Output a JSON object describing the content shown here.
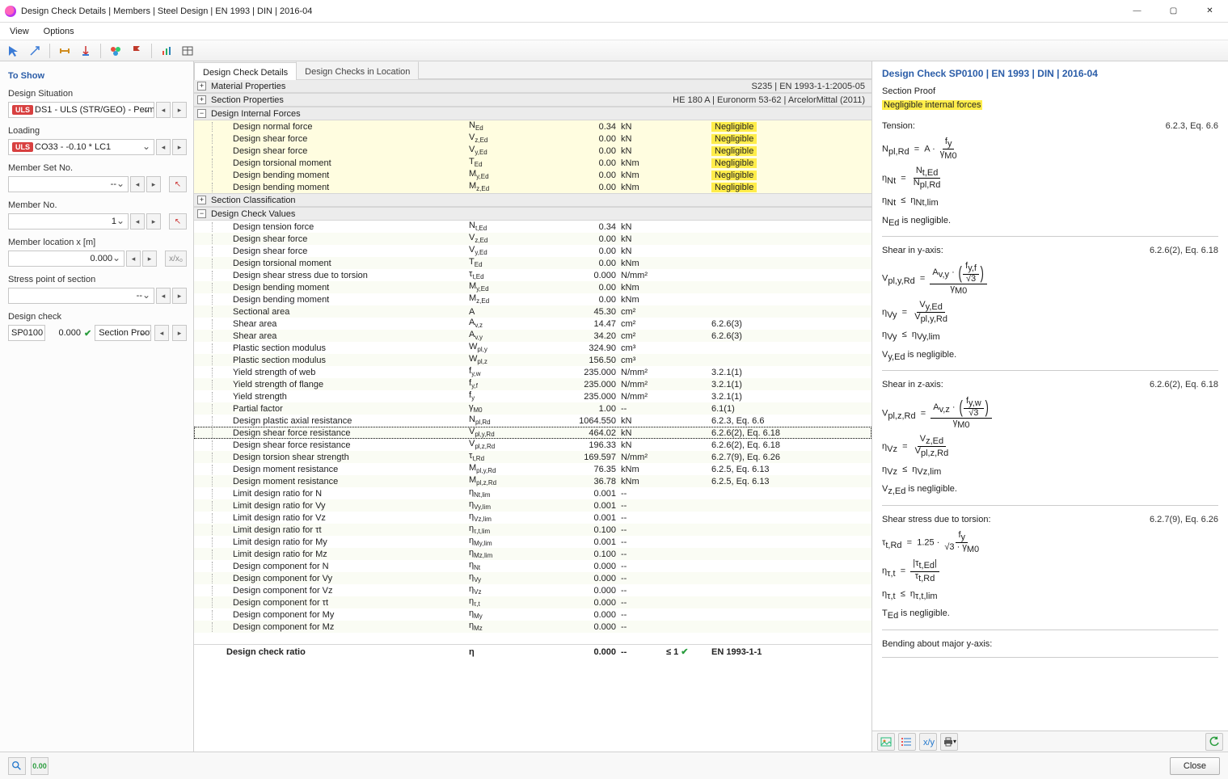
{
  "window": {
    "title": "Design Check Details | Members | Steel Design | EN 1993 | DIN | 2016-04"
  },
  "menu": {
    "items": [
      "View",
      "Options"
    ]
  },
  "left": {
    "heading_to_show": "To Show",
    "labels": {
      "design_situation": "Design Situation",
      "loading": "Loading",
      "member_set_no": "Member Set No.",
      "member_no": "Member No.",
      "member_location": "Member location x [m]",
      "stress_point": "Stress point of section",
      "design_check": "Design check"
    },
    "design_situation_tag": "ULS",
    "design_situation_value": "DS1 - ULS (STR/GEO) - Perm...",
    "loading_tag": "ULS",
    "loading_value": "CO33 - -0.10 * LC1",
    "member_set_value": "--",
    "member_no_value": "1",
    "member_location_value": "0.000",
    "member_location_reset": "x/x₀",
    "stress_point_value": "--",
    "design_check_code": "SP0100",
    "design_check_ratio": "0.000",
    "design_check_desc": "Section Proof |..."
  },
  "tabs": {
    "active": "Design Check Details",
    "inactive": "Design Checks in Location"
  },
  "center": {
    "groups": [
      {
        "title": "Material Properties",
        "right": "S235 | EN 1993-1-1:2005-05",
        "exp": "+",
        "rows": []
      },
      {
        "title": "Section Properties",
        "right": "HE 180 A | Euronorm 53-62 | ArcelorMittal (2011)",
        "exp": "+",
        "rows": []
      },
      {
        "title": "Design Internal Forces",
        "right": "",
        "exp": "−",
        "hiA": true,
        "rows": [
          {
            "label": "Design normal force",
            "sym": "N",
            "sub": "Ed",
            "val": "0.34",
            "unit": "kN",
            "note": "Negligible"
          },
          {
            "label": "Design shear force",
            "sym": "V",
            "sub": "z,Ed",
            "val": "0.00",
            "unit": "kN",
            "note": "Negligible"
          },
          {
            "label": "Design shear force",
            "sym": "V",
            "sub": "y,Ed",
            "val": "0.00",
            "unit": "kN",
            "note": "Negligible"
          },
          {
            "label": "Design torsional moment",
            "sym": "T",
            "sub": "Ed",
            "val": "0.00",
            "unit": "kNm",
            "note": "Negligible"
          },
          {
            "label": "Design bending moment",
            "sym": "M",
            "sub": "y,Ed",
            "val": "0.00",
            "unit": "kNm",
            "note": "Negligible"
          },
          {
            "label": "Design bending moment",
            "sym": "M",
            "sub": "z,Ed",
            "val": "0.00",
            "unit": "kNm",
            "note": "Negligible"
          }
        ]
      },
      {
        "title": "Section Classification",
        "right": "",
        "exp": "+",
        "rows": []
      },
      {
        "title": "Design Check Values",
        "right": "",
        "exp": "−",
        "rows": [
          {
            "label": "Design tension force",
            "sym": "N",
            "sub": "t,Ed",
            "val": "0.34",
            "unit": "kN",
            "note": ""
          },
          {
            "label": "Design shear force",
            "sym": "V",
            "sub": "z,Ed",
            "val": "0.00",
            "unit": "kN",
            "note": ""
          },
          {
            "label": "Design shear force",
            "sym": "V",
            "sub": "y,Ed",
            "val": "0.00",
            "unit": "kN",
            "note": ""
          },
          {
            "label": "Design torsional moment",
            "sym": "T",
            "sub": "Ed",
            "val": "0.00",
            "unit": "kNm",
            "note": ""
          },
          {
            "label": "Design shear stress due to torsion",
            "sym": "τ",
            "sub": "t,Ed",
            "val": "0.000",
            "unit": "N/mm²",
            "note": ""
          },
          {
            "label": "Design bending moment",
            "sym": "M",
            "sub": "y,Ed",
            "val": "0.00",
            "unit": "kNm",
            "note": ""
          },
          {
            "label": "Design bending moment",
            "sym": "M",
            "sub": "z,Ed",
            "val": "0.00",
            "unit": "kNm",
            "note": ""
          },
          {
            "label": "Sectional area",
            "sym": "A",
            "sub": "",
            "val": "45.30",
            "unit": "cm²",
            "note": ""
          },
          {
            "label": "Shear area",
            "sym": "A",
            "sub": "v,z",
            "val": "14.47",
            "unit": "cm²",
            "note": "6.2.6(3)"
          },
          {
            "label": "Shear area",
            "sym": "A",
            "sub": "v,y",
            "val": "34.20",
            "unit": "cm²",
            "note": "6.2.6(3)"
          },
          {
            "label": "Plastic section modulus",
            "sym": "W",
            "sub": "pl,y",
            "val": "324.90",
            "unit": "cm³",
            "note": ""
          },
          {
            "label": "Plastic section modulus",
            "sym": "W",
            "sub": "pl,z",
            "val": "156.50",
            "unit": "cm³",
            "note": ""
          },
          {
            "label": "Yield strength of web",
            "sym": "f",
            "sub": "y,w",
            "val": "235.000",
            "unit": "N/mm²",
            "note": "3.2.1(1)"
          },
          {
            "label": "Yield strength of flange",
            "sym": "f",
            "sub": "y,f",
            "val": "235.000",
            "unit": "N/mm²",
            "note": "3.2.1(1)"
          },
          {
            "label": "Yield strength",
            "sym": "f",
            "sub": "y",
            "val": "235.000",
            "unit": "N/mm²",
            "note": "3.2.1(1)"
          },
          {
            "label": "Partial factor",
            "sym": "γ",
            "sub": "M0",
            "val": "1.00",
            "unit": "--",
            "note": "6.1(1)"
          },
          {
            "label": "Design plastic axial resistance",
            "sym": "N",
            "sub": "pl,Rd",
            "val": "1064.550",
            "unit": "kN",
            "note": "6.2.3, Eq. 6.6"
          },
          {
            "label": "Design shear force resistance",
            "sym": "V",
            "sub": "pl,y,Rd",
            "val": "464.02",
            "unit": "kN",
            "note": "6.2.6(2), Eq. 6.18",
            "selected": true
          },
          {
            "label": "Design shear force resistance",
            "sym": "V",
            "sub": "pl,z,Rd",
            "val": "196.33",
            "unit": "kN",
            "note": "6.2.6(2), Eq. 6.18"
          },
          {
            "label": "Design torsion shear strength",
            "sym": "τ",
            "sub": "t,Rd",
            "val": "169.597",
            "unit": "N/mm²",
            "note": "6.2.7(9), Eq. 6.26"
          },
          {
            "label": "Design moment resistance",
            "sym": "M",
            "sub": "pl,y,Rd",
            "val": "76.35",
            "unit": "kNm",
            "note": "6.2.5, Eq. 6.13"
          },
          {
            "label": "Design moment resistance",
            "sym": "M",
            "sub": "pl,z,Rd",
            "val": "36.78",
            "unit": "kNm",
            "note": "6.2.5, Eq. 6.13"
          },
          {
            "label": "Limit design ratio for N",
            "sym": "η",
            "sub": "Nt,lim",
            "val": "0.001",
            "unit": "--",
            "note": ""
          },
          {
            "label": "Limit design ratio for Vy",
            "sym": "η",
            "sub": "Vy,lim",
            "val": "0.001",
            "unit": "--",
            "note": ""
          },
          {
            "label": "Limit design ratio for Vz",
            "sym": "η",
            "sub": "Vz,lim",
            "val": "0.001",
            "unit": "--",
            "note": ""
          },
          {
            "label": "Limit design ratio for τt",
            "sym": "η",
            "sub": "τ,t,lim",
            "val": "0.100",
            "unit": "--",
            "note": ""
          },
          {
            "label": "Limit design ratio for My",
            "sym": "η",
            "sub": "My,lim",
            "val": "0.001",
            "unit": "--",
            "note": ""
          },
          {
            "label": "Limit design ratio for Mz",
            "sym": "η",
            "sub": "Mz,lim",
            "val": "0.100",
            "unit": "--",
            "note": ""
          },
          {
            "label": "Design component for N",
            "sym": "η",
            "sub": "Nt",
            "val": "0.000",
            "unit": "--",
            "note": ""
          },
          {
            "label": "Design component for Vy",
            "sym": "η",
            "sub": "Vy",
            "val": "0.000",
            "unit": "--",
            "note": ""
          },
          {
            "label": "Design component for Vz",
            "sym": "η",
            "sub": "Vz",
            "val": "0.000",
            "unit": "--",
            "note": ""
          },
          {
            "label": "Design component for τt",
            "sym": "η",
            "sub": "τ,t",
            "val": "0.000",
            "unit": "--",
            "note": ""
          },
          {
            "label": "Design component for My",
            "sym": "η",
            "sub": "My",
            "val": "0.000",
            "unit": "--",
            "note": ""
          },
          {
            "label": "Design component for Mz",
            "sym": "η",
            "sub": "Mz",
            "val": "0.000",
            "unit": "--",
            "note": ""
          }
        ]
      }
    ],
    "summary": {
      "label": "Design check ratio",
      "sym": "η",
      "val": "0.000",
      "unit": "--",
      "limit": "≤ 1",
      "std": "EN 1993-1-1"
    }
  },
  "right": {
    "title": "Design Check SP0100 | EN 1993 | DIN | 2016-04",
    "section_proof": "Section Proof",
    "subtitle_hl": "Negligible internal forces",
    "blocks": [
      {
        "head": "Tension:",
        "ref": "6.2.3, Eq. 6.6",
        "eqs": [
          "N<sub>pl,Rd</sub>&nbsp;&nbsp;=&nbsp;&nbsp;A · <span class='frac'><span class='num'>f<sub>y</sub></span><span class='den'>γ<sub>M0</sub></span></span>",
          "η<sub>Nt</sub>&nbsp;&nbsp;=&nbsp;&nbsp;<span class='frac'><span class='num'>N<sub>t,Ed</sub></span><span class='den'>N<sub>pl,Rd</sub></span></span>",
          "η<sub>Nt</sub> &nbsp;≤&nbsp; η<sub>Nt,lim</sub>",
          "N<sub>Ed</sub> is negligible."
        ]
      },
      {
        "head": "Shear in y-axis:",
        "ref": "6.2.6(2), Eq. 6.18",
        "eqs": [
          "V<sub>pl,y,Rd</sub>&nbsp;&nbsp;=&nbsp;&nbsp;<span class='frac'><span class='num'>A<sub>v,y</sub> · <span class='big-paren'>(</span><span class='frac'><span class='num'>f<sub>y,f</sub></span><span class='den'>√3</span></span><span class='big-paren'>)</span></span><span class='den'>γ<sub>M0</sub></span></span>",
          "η<sub>Vy</sub>&nbsp;&nbsp;=&nbsp;&nbsp;<span class='frac'><span class='num'>V<sub>y,Ed</sub></span><span class='den'>V<sub>pl,y,Rd</sub></span></span>",
          "η<sub>Vy</sub> &nbsp;≤&nbsp; η<sub>Vy,lim</sub>",
          "V<sub>y,Ed</sub> is negligible."
        ]
      },
      {
        "head": "Shear in z-axis:",
        "ref": "6.2.6(2), Eq. 6.18",
        "eqs": [
          "V<sub>pl,z,Rd</sub>&nbsp;&nbsp;=&nbsp;&nbsp;<span class='frac'><span class='num'>A<sub>v,z</sub> · <span class='big-paren'>(</span><span class='frac'><span class='num'>f<sub>y,w</sub></span><span class='den'>√3</span></span><span class='big-paren'>)</span></span><span class='den'>γ<sub>M0</sub></span></span>",
          "η<sub>Vz</sub>&nbsp;&nbsp;=&nbsp;&nbsp;<span class='frac'><span class='num'>V<sub>z,Ed</sub></span><span class='den'>V<sub>pl,z,Rd</sub></span></span>",
          "η<sub>Vz</sub> &nbsp;≤&nbsp; η<sub>Vz,lim</sub>",
          "V<sub>z,Ed</sub> is negligible."
        ]
      },
      {
        "head": "Shear stress due to torsion:",
        "ref": "6.2.7(9), Eq. 6.26",
        "eqs": [
          "τ<sub>t,Rd</sub>&nbsp;&nbsp;=&nbsp;&nbsp;1.25 · <span class='frac'><span class='num'>f<sub>y</sub></span><span class='den'>√3 · γ<sub>M0</sub></span></span>",
          "η<sub>τ,t</sub>&nbsp;&nbsp;=&nbsp;&nbsp;<span class='frac'><span class='num'>|τ<sub>t,Ed</sub>|</span><span class='den'>τ<sub>t,Rd</sub></span></span>",
          "η<sub>τ,t</sub> &nbsp;≤&nbsp; η<sub>τ,t,lim</sub>",
          "T<sub>Ed</sub> is negligible."
        ]
      },
      {
        "head": "Bending about major y-axis:",
        "ref": "",
        "eqs": []
      }
    ]
  },
  "bottom": {
    "close": "Close"
  }
}
